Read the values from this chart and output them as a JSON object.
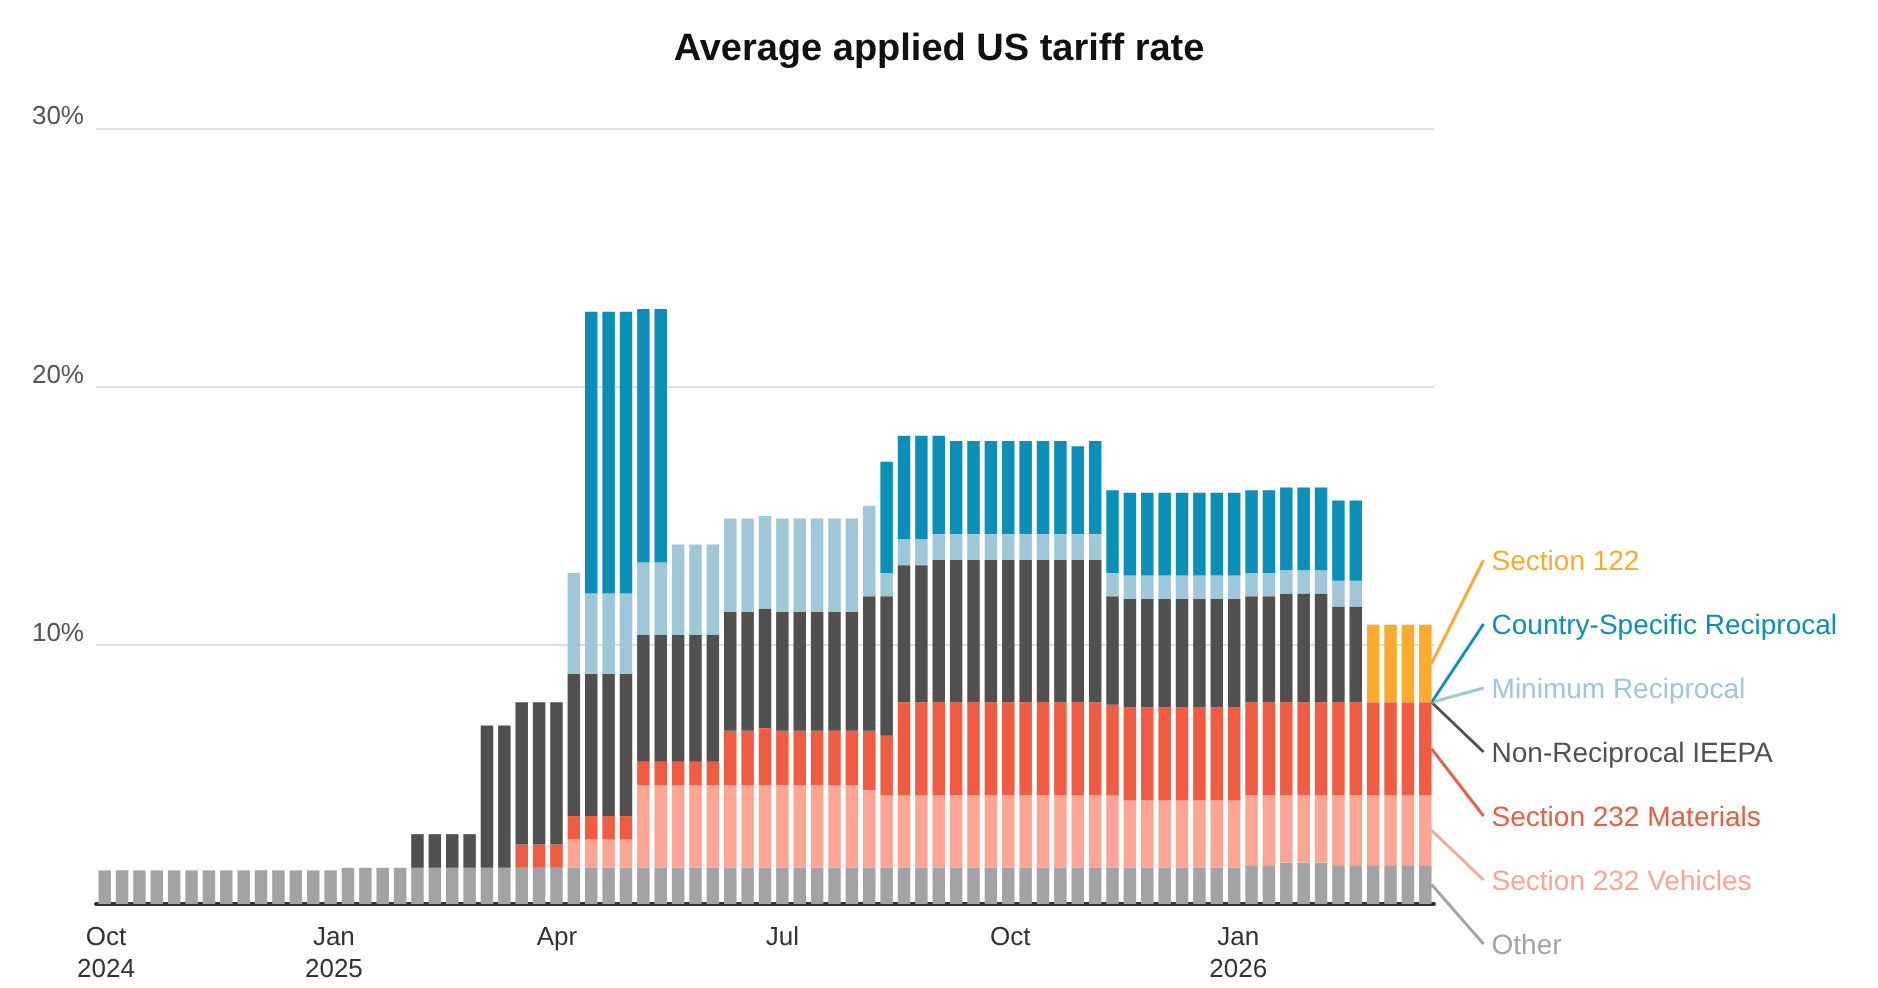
{
  "chart_data": {
    "type": "bar",
    "title": "Average applied US tariff rate",
    "stacked": true,
    "grid": "y",
    "legend": "right",
    "x": [
      "2024-10-01",
      "2024-10-08",
      "2024-10-15",
      "2024-10-22",
      "2024-10-29",
      "2024-11-05",
      "2024-11-12",
      "2024-11-19",
      "2024-11-26",
      "2024-12-03",
      "2024-12-10",
      "2024-12-17",
      "2024-12-24",
      "2024-12-31",
      "2025-01-07",
      "2025-01-14",
      "2025-01-21",
      "2025-01-28",
      "2025-02-04",
      "2025-02-11",
      "2025-02-18",
      "2025-02-25",
      "2025-03-04",
      "2025-03-11",
      "2025-03-18",
      "2025-03-25",
      "2025-04-01",
      "2025-04-08",
      "2025-04-15",
      "2025-04-22",
      "2025-04-29",
      "2025-05-06",
      "2025-05-13",
      "2025-05-20",
      "2025-05-27",
      "2025-06-03",
      "2025-06-10",
      "2025-06-17",
      "2025-06-24",
      "2025-07-01",
      "2025-07-08",
      "2025-07-15",
      "2025-07-22",
      "2025-07-29",
      "2025-08-05",
      "2025-08-12",
      "2025-08-19",
      "2025-08-26",
      "2025-09-02",
      "2025-09-09",
      "2025-09-16",
      "2025-09-23",
      "2025-09-30",
      "2025-10-07",
      "2025-10-14",
      "2025-10-21",
      "2025-10-28",
      "2025-11-04",
      "2025-11-11",
      "2025-11-18",
      "2025-11-25",
      "2025-12-02",
      "2025-12-09",
      "2025-12-16",
      "2025-12-23",
      "2025-12-30",
      "2026-01-06",
      "2026-01-13",
      "2026-01-20",
      "2026-01-27",
      "2026-02-03",
      "2026-02-10",
      "2026-02-17",
      "2026-02-24",
      "2026-03-03",
      "2026-03-10",
      "2026-03-17"
    ],
    "xlim": [
      "2024-09-27",
      "2026-03-21"
    ],
    "xticks": [
      {
        "value": "2024-10-01",
        "label": "Oct\n2024"
      },
      {
        "value": "2025-01-01",
        "label": "Jan\n2025"
      },
      {
        "value": "2025-04-01",
        "label": "Apr"
      },
      {
        "value": "2025-07-01",
        "label": "Jul"
      },
      {
        "value": "2025-10-01",
        "label": "Oct"
      },
      {
        "value": "2026-01-01",
        "label": "Jan\n2026"
      }
    ],
    "ylim": [
      0,
      30
    ],
    "yticks": [
      {
        "value": 0,
        "label": null
      },
      {
        "value": 10,
        "label": "10%"
      },
      {
        "value": 20,
        "label": "20%"
      },
      {
        "value": 30,
        "label": "30%"
      }
    ],
    "series": [
      {
        "name": "Other",
        "color": "#a3a3a3",
        "values": [
          1.3,
          1.3,
          1.3,
          1.3,
          1.3,
          1.3,
          1.3,
          1.3,
          1.3,
          1.3,
          1.3,
          1.3,
          1.3,
          1.3,
          1.4,
          1.4,
          1.4,
          1.4,
          1.4,
          1.4,
          1.4,
          1.4,
          1.4,
          1.4,
          1.4,
          1.4,
          1.4,
          1.4,
          1.4,
          1.4,
          1.4,
          1.4,
          1.4,
          1.4,
          1.4,
          1.4,
          1.4,
          1.4,
          1.4,
          1.4,
          1.4,
          1.4,
          1.4,
          1.4,
          1.4,
          1.4,
          1.4,
          1.4,
          1.4,
          1.4,
          1.4,
          1.4,
          1.4,
          1.4,
          1.4,
          1.4,
          1.4,
          1.4,
          1.4,
          1.4,
          1.4,
          1.4,
          1.4,
          1.4,
          1.4,
          1.4,
          1.5,
          1.5,
          1.6,
          1.6,
          1.6,
          1.5,
          1.5,
          1.5,
          1.5,
          1.5,
          1.5
        ]
      },
      {
        "name": "Section 232 Vehicles",
        "color": "#fca594",
        "values": [
          null,
          null,
          null,
          null,
          null,
          null,
          null,
          null,
          null,
          null,
          null,
          null,
          null,
          null,
          null,
          null,
          null,
          null,
          null,
          null,
          null,
          null,
          null,
          null,
          null,
          null,
          null,
          1.1,
          1.1,
          1.1,
          1.1,
          3.2,
          3.2,
          3.2,
          3.2,
          3.2,
          3.2,
          3.2,
          3.2,
          3.2,
          3.2,
          3.2,
          3.2,
          3.2,
          3.0,
          2.8,
          2.8,
          2.8,
          2.8,
          2.8,
          2.8,
          2.8,
          2.8,
          2.8,
          2.8,
          2.8,
          2.8,
          2.8,
          2.8,
          2.6,
          2.6,
          2.6,
          2.6,
          2.6,
          2.6,
          2.6,
          2.7,
          2.7,
          2.6,
          2.6,
          2.6,
          2.7,
          2.7,
          2.7,
          2.7,
          2.7,
          2.7
        ]
      },
      {
        "name": "Section 232 Materials",
        "color": "#f05b41",
        "values": [
          null,
          null,
          null,
          null,
          null,
          null,
          null,
          null,
          null,
          null,
          null,
          null,
          null,
          null,
          null,
          null,
          null,
          null,
          null,
          null,
          null,
          null,
          null,
          null,
          0.9,
          0.9,
          0.9,
          0.9,
          0.9,
          0.9,
          0.9,
          0.9,
          0.9,
          0.9,
          0.9,
          0.9,
          2.1,
          2.1,
          2.2,
          2.1,
          2.1,
          2.1,
          2.1,
          2.1,
          2.3,
          2.3,
          3.6,
          3.6,
          3.6,
          3.6,
          3.6,
          3.6,
          3.6,
          3.6,
          3.6,
          3.6,
          3.6,
          3.6,
          3.5,
          3.6,
          3.6,
          3.6,
          3.6,
          3.6,
          3.6,
          3.6,
          3.6,
          3.6,
          3.6,
          3.6,
          3.6,
          3.6,
          3.6,
          3.6,
          3.6,
          3.6,
          3.6
        ]
      },
      {
        "name": "Non-Reciprocal IEEPA",
        "color": "#505050",
        "values": [
          null,
          null,
          null,
          null,
          null,
          null,
          null,
          null,
          null,
          null,
          null,
          null,
          null,
          null,
          null,
          null,
          null,
          null,
          1.3,
          1.3,
          1.3,
          1.3,
          5.5,
          5.5,
          5.5,
          5.5,
          5.5,
          5.5,
          5.5,
          5.5,
          5.5,
          4.9,
          4.9,
          4.9,
          4.9,
          4.9,
          4.6,
          4.6,
          4.6,
          4.6,
          4.6,
          4.6,
          4.6,
          4.6,
          5.2,
          5.4,
          5.3,
          5.3,
          5.5,
          5.5,
          5.5,
          5.5,
          5.5,
          5.5,
          5.5,
          5.5,
          5.5,
          5.5,
          4.2,
          4.2,
          4.2,
          4.2,
          4.2,
          4.2,
          4.2,
          4.2,
          4.1,
          4.1,
          4.2,
          4.2,
          4.2,
          3.7,
          3.7,
          null,
          null,
          null,
          null
        ]
      },
      {
        "name": "Minimum Reciprocal",
        "color": "#9ec7d8",
        "values": [
          null,
          null,
          null,
          null,
          null,
          null,
          null,
          null,
          null,
          null,
          null,
          null,
          null,
          null,
          null,
          null,
          null,
          null,
          null,
          null,
          null,
          null,
          null,
          null,
          null,
          null,
          null,
          3.9,
          3.1,
          3.1,
          3.1,
          2.8,
          2.8,
          3.5,
          3.5,
          3.5,
          3.6,
          3.6,
          3.6,
          3.6,
          3.6,
          3.6,
          3.6,
          3.6,
          3.5,
          0.9,
          1.0,
          1.0,
          1.0,
          1.0,
          1.0,
          1.0,
          1.0,
          1.0,
          1.0,
          1.0,
          1.0,
          1.0,
          0.9,
          0.9,
          0.9,
          0.9,
          0.9,
          0.9,
          0.9,
          0.9,
          0.9,
          0.9,
          0.9,
          0.9,
          0.9,
          1.0,
          1.0,
          null,
          null,
          null,
          null
        ]
      },
      {
        "name": "Country-Specific Reciprocal",
        "color": "#0a8fb8",
        "values": [
          null,
          null,
          null,
          null,
          null,
          null,
          null,
          null,
          null,
          null,
          null,
          null,
          null,
          null,
          null,
          null,
          null,
          null,
          null,
          null,
          null,
          null,
          null,
          null,
          null,
          null,
          null,
          null,
          10.9,
          10.9,
          10.9,
          9.8,
          9.8,
          null,
          null,
          null,
          null,
          null,
          null,
          null,
          null,
          null,
          null,
          null,
          null,
          4.3,
          4.0,
          4.0,
          3.8,
          3.6,
          3.6,
          3.6,
          3.6,
          3.6,
          3.6,
          3.6,
          3.4,
          3.6,
          3.2,
          3.2,
          3.2,
          3.2,
          3.2,
          3.2,
          3.2,
          3.2,
          3.2,
          3.2,
          3.2,
          3.2,
          3.2,
          3.1,
          3.1,
          null,
          null,
          null,
          null
        ]
      },
      {
        "name": "Section 122",
        "color": "#fbab2b",
        "values": [
          null,
          null,
          null,
          null,
          null,
          null,
          null,
          null,
          null,
          null,
          null,
          null,
          null,
          null,
          null,
          null,
          null,
          null,
          null,
          null,
          null,
          null,
          null,
          null,
          null,
          null,
          null,
          null,
          null,
          null,
          null,
          null,
          null,
          null,
          null,
          null,
          null,
          null,
          null,
          null,
          null,
          null,
          null,
          null,
          null,
          null,
          null,
          null,
          null,
          null,
          null,
          null,
          null,
          null,
          null,
          null,
          null,
          null,
          null,
          null,
          null,
          null,
          null,
          null,
          null,
          null,
          null,
          null,
          null,
          null,
          null,
          null,
          null,
          3.0,
          3.0,
          3.0,
          3.0
        ]
      }
    ]
  }
}
